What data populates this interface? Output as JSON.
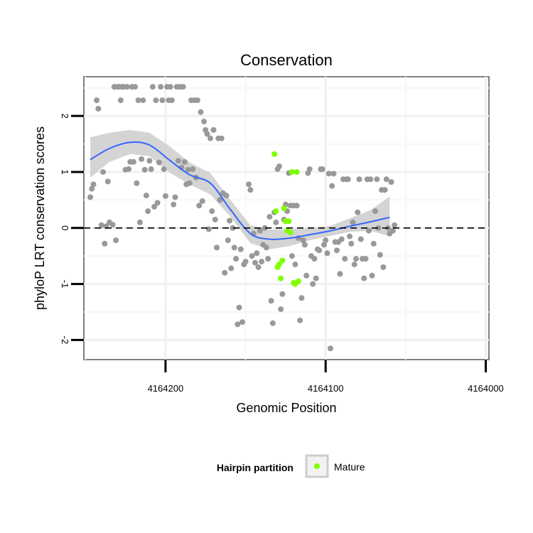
{
  "chart_data": {
    "type": "scatter",
    "title": "Conservation",
    "xlabel": "Genomic Position",
    "ylabel": "phyloP LRT conservation scores",
    "x_reversed": true,
    "xlim": [
      4164251,
      4163998
    ],
    "ylim": [
      -2.35,
      2.7
    ],
    "x_ticks": [
      4164200,
      4164100,
      4164000
    ],
    "x_tick_labels": [
      "4164200",
      "4164100",
      "4164000"
    ],
    "y_ticks": [
      -2,
      -1,
      0,
      1,
      2
    ],
    "y_tick_labels": [
      "-2",
      "-1",
      "0",
      "1",
      "2"
    ],
    "grid": true,
    "reference_line": {
      "y": 0,
      "style": "dashed",
      "color": "#000000"
    },
    "legend": {
      "title": "Hairpin partition",
      "position": "bottom",
      "entries": [
        {
          "label": "Mature",
          "color": "#7FFF00"
        }
      ]
    },
    "colors": {
      "background_points": "#999999",
      "mature_points": "#7FFF00",
      "smooth_line": "#3366FF",
      "confidence_band": "#CCCCCC"
    },
    "series": [
      {
        "points": [
          [
            4164247,
            0.55
          ],
          [
            4164246,
            0.7
          ],
          [
            4164245,
            0.78
          ],
          [
            4164243,
            2.28
          ],
          [
            4164242,
            2.13
          ],
          [
            4164240,
            0.05
          ],
          [
            4164239,
            1.0
          ],
          [
            4164238,
            -0.28
          ],
          [
            4164237,
            0.03
          ],
          [
            4164236,
            0.83
          ],
          [
            4164235,
            0.1
          ],
          [
            4164233,
            0.06
          ],
          [
            4164232,
            2.52
          ],
          [
            4164231,
            -0.22
          ],
          [
            4164230,
            2.52
          ],
          [
            4164229,
            2.52
          ],
          [
            4164228,
            2.28
          ],
          [
            4164227,
            2.52
          ],
          [
            4164226,
            2.52
          ],
          [
            4164225,
            1.04
          ],
          [
            4164224,
            2.52
          ],
          [
            4164223,
            1.05
          ],
          [
            4164222,
            1.18
          ],
          [
            4164221,
            2.52
          ],
          [
            4164220,
            1.18
          ],
          [
            4164219,
            2.52
          ],
          [
            4164218,
            0.8
          ],
          [
            4164217,
            2.28
          ],
          [
            4164216,
            0.1
          ],
          [
            4164215,
            1.23
          ],
          [
            4164214,
            2.28
          ],
          [
            4164213,
            1.04
          ],
          [
            4164212,
            0.58
          ],
          [
            4164211,
            0.3
          ],
          [
            4164210,
            1.2
          ],
          [
            4164209,
            1.05
          ],
          [
            4164208,
            2.52
          ],
          [
            4164207,
            0.38
          ],
          [
            4164206,
            2.28
          ],
          [
            4164205,
            0.45
          ],
          [
            4164204,
            1.17
          ],
          [
            4164203,
            2.52
          ],
          [
            4164202,
            2.28
          ],
          [
            4164201,
            1.05
          ],
          [
            4164200,
            0.57
          ],
          [
            4164199,
            2.52
          ],
          [
            4164198,
            2.28
          ],
          [
            4164197,
            2.52
          ],
          [
            4164196,
            2.28
          ],
          [
            4164195,
            0.42
          ],
          [
            4164194,
            0.55
          ],
          [
            4164193,
            2.52
          ],
          [
            4164192,
            1.2
          ],
          [
            4164191,
            2.52
          ],
          [
            4164190,
            1.08
          ],
          [
            4164189,
            2.52
          ],
          [
            4164188,
            1.18
          ],
          [
            4164187,
            0.78
          ],
          [
            4164186,
            1.04
          ],
          [
            4164185,
            0.8
          ],
          [
            4164184,
            2.28
          ],
          [
            4164183,
            1.05
          ],
          [
            4164182,
            2.28
          ],
          [
            4164181,
            0.9
          ],
          [
            4164180,
            2.28
          ],
          [
            4164179,
            0.4
          ],
          [
            4164178,
            2.07
          ],
          [
            4164177,
            0.48
          ],
          [
            4164176,
            1.9
          ],
          [
            4164175,
            1.75
          ],
          [
            4164174,
            1.68
          ],
          [
            4164173,
            -0.02
          ],
          [
            4164172,
            1.6
          ],
          [
            4164171,
            0.3
          ],
          [
            4164170,
            1.75
          ],
          [
            4164169,
            0.15
          ],
          [
            4164168,
            -0.35
          ],
          [
            4164167,
            1.6
          ],
          [
            4164166,
            0.5
          ],
          [
            4164165,
            1.6
          ],
          [
            4164164,
            0.62
          ],
          [
            4164163,
            -0.8
          ],
          [
            4164162,
            0.58
          ],
          [
            4164161,
            -0.22
          ],
          [
            4164160,
            0.13
          ],
          [
            4164159,
            -0.72
          ],
          [
            4164158,
            0.0
          ],
          [
            4164157,
            -0.35
          ],
          [
            4164156,
            -0.55
          ],
          [
            4164155,
            -1.72
          ],
          [
            4164154,
            -1.42
          ],
          [
            4164153,
            -0.38
          ],
          [
            4164152,
            -1.68
          ],
          [
            4164151,
            -0.65
          ],
          [
            4164150,
            -0.6
          ],
          [
            4164148,
            0.78
          ],
          [
            4164147,
            0.68
          ],
          [
            4164146,
            -0.5
          ],
          [
            4164145,
            -0.1
          ],
          [
            4164144,
            -0.62
          ],
          [
            4164143,
            -0.45
          ],
          [
            4164142,
            -0.7
          ],
          [
            4164141,
            -0.05
          ],
          [
            4164140,
            -0.6
          ],
          [
            4164139,
            -0.3
          ],
          [
            4164138,
            0.0
          ],
          [
            4164137,
            -0.35
          ],
          [
            4164136,
            -0.55
          ],
          [
            4164135,
            0.2
          ],
          [
            4164134,
            -1.3
          ],
          [
            4164133,
            -1.7
          ],
          [
            4164132,
            0.28
          ],
          [
            4164131,
            0.1
          ],
          [
            4164130,
            1.05
          ],
          [
            4164129,
            1.1
          ],
          [
            4164128,
            -1.45
          ],
          [
            4164127,
            -1.18
          ],
          [
            4164126,
            0.15
          ],
          [
            4164125,
            0.42
          ],
          [
            4164124,
            0.3
          ],
          [
            4164123,
            0.98
          ],
          [
            4164122,
            0.4
          ],
          [
            4164121,
            -0.5
          ],
          [
            4164120,
            0.4
          ],
          [
            4164119,
            -0.65
          ],
          [
            4164118,
            0.4
          ],
          [
            4164117,
            -0.18
          ],
          [
            4164116,
            -1.65
          ],
          [
            4164115,
            -1.25
          ],
          [
            4164114,
            -0.22
          ],
          [
            4164113,
            -0.3
          ],
          [
            4164112,
            -0.85
          ],
          [
            4164111,
            0.98
          ],
          [
            4164110,
            1.05
          ],
          [
            4164109,
            -0.5
          ],
          [
            4164108,
            -1.0
          ],
          [
            4164107,
            -0.55
          ],
          [
            4164106,
            -0.9
          ],
          [
            4164105,
            -0.38
          ],
          [
            4164104,
            -0.4
          ],
          [
            4164103,
            1.05
          ],
          [
            4164102,
            1.05
          ],
          [
            4164101,
            -0.3
          ],
          [
            4164100,
            -0.22
          ],
          [
            4164099,
            -0.45
          ],
          [
            4164098,
            0.97
          ],
          [
            4164097,
            -2.15
          ],
          [
            4164096,
            0.75
          ],
          [
            4164095,
            0.97
          ],
          [
            4164094,
            -0.25
          ],
          [
            4164093,
            -0.4
          ],
          [
            4164092,
            -0.25
          ],
          [
            4164091,
            -0.82
          ],
          [
            4164090,
            -0.2
          ],
          [
            4164089,
            0.87
          ],
          [
            4164088,
            -0.55
          ],
          [
            4164087,
            0.87
          ],
          [
            4164086,
            0.87
          ],
          [
            4164085,
            -0.15
          ],
          [
            4164084,
            -0.28
          ],
          [
            4164083,
            0.1
          ],
          [
            4164082,
            -0.65
          ],
          [
            4164081,
            -0.55
          ],
          [
            4164080,
            0.28
          ],
          [
            4164079,
            0.87
          ],
          [
            4164078,
            -0.2
          ],
          [
            4164077,
            -0.55
          ],
          [
            4164076,
            -0.9
          ],
          [
            4164075,
            -0.55
          ],
          [
            4164074,
            0.87
          ],
          [
            4164073,
            -0.05
          ],
          [
            4164072,
            0.87
          ],
          [
            4164071,
            -0.85
          ],
          [
            4164070,
            -0.28
          ],
          [
            4164069,
            0.3
          ],
          [
            4164068,
            0.87
          ],
          [
            4164067,
            0.0
          ],
          [
            4164066,
            -0.48
          ],
          [
            4164065,
            0.68
          ],
          [
            4164064,
            -0.7
          ],
          [
            4164063,
            0.68
          ],
          [
            4164062,
            0.87
          ],
          [
            4164061,
            0.0
          ],
          [
            4164060,
            -0.1
          ],
          [
            4164059,
            0.82
          ],
          [
            4164058,
            -0.05
          ],
          [
            4164057,
            0.05
          ]
        ]
      },
      {
        "name": "Mature",
        "points": [
          [
            4164132,
            1.32
          ],
          [
            4164131,
            0.3
          ],
          [
            4164130,
            -0.7
          ],
          [
            4164129,
            -0.65
          ],
          [
            4164128,
            -0.9
          ],
          [
            4164127,
            -0.58
          ],
          [
            4164126,
            0.35
          ],
          [
            4164125,
            0.12
          ],
          [
            4164124,
            -0.05
          ],
          [
            4164123,
            0.12
          ],
          [
            4164122,
            -0.08
          ],
          [
            4164121,
            1.0
          ],
          [
            4164120,
            -0.98
          ],
          [
            4164119,
            -1.0
          ],
          [
            4164118,
            1.0
          ],
          [
            4164117,
            -0.95
          ]
        ]
      }
    ],
    "smooth": {
      "x": [
        4164247,
        4164235,
        4164222,
        4164210,
        4164197,
        4164185,
        4164172,
        4164160,
        4164147,
        4164135,
        4164122,
        4164110,
        4164097,
        4164085,
        4164072,
        4164060
      ],
      "y": [
        1.22,
        1.42,
        1.53,
        1.48,
        1.2,
        0.95,
        0.8,
        0.35,
        -0.1,
        -0.2,
        -0.18,
        -0.12,
        -0.05,
        0.03,
        0.11,
        0.19
      ],
      "lower": [
        0.9,
        1.18,
        1.32,
        1.28,
        0.98,
        0.78,
        0.6,
        0.22,
        -0.27,
        -0.38,
        -0.32,
        -0.22,
        -0.14,
        -0.07,
        -0.05,
        -0.15
      ],
      "upper": [
        1.62,
        1.7,
        1.75,
        1.7,
        1.45,
        1.17,
        0.98,
        0.52,
        0.05,
        -0.03,
        -0.02,
        -0.01,
        0.04,
        0.17,
        0.32,
        0.56
      ]
    }
  }
}
